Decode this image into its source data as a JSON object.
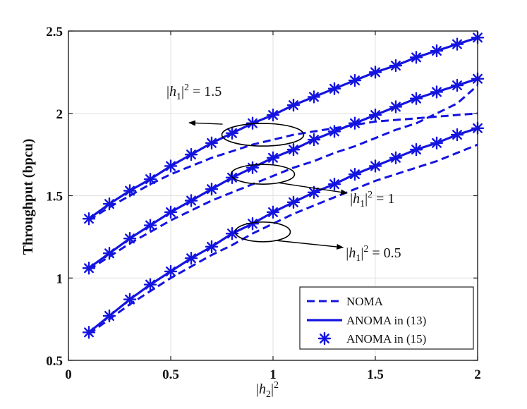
{
  "chart_data": {
    "type": "line",
    "title": "",
    "xlabel": "|h2|^2",
    "ylabel": "Throughput (bpcu)",
    "xlim": [
      0,
      2
    ],
    "ylim": [
      0.5,
      2.5
    ],
    "xticks": [
      "0",
      "0.5",
      "1",
      "1.5",
      "2"
    ],
    "yticks": [
      "0.5",
      "1",
      "1.5",
      "2",
      "2.5"
    ],
    "grid": true,
    "legend_position": "bottom-right",
    "legend": [
      "NOMA",
      "ANOMA in (13)",
      "ANOMA in (15)"
    ],
    "x": [
      0.1,
      0.2,
      0.3,
      0.4,
      0.5,
      0.6,
      0.7,
      0.8,
      0.9,
      1.0,
      1.1,
      1.2,
      1.3,
      1.4,
      1.5,
      1.6,
      1.7,
      1.8,
      1.9,
      2.0
    ],
    "series": [
      {
        "name": "NOMA, |h1|^2 = 1.5",
        "style": "dashed",
        "values": [
          1.35,
          1.43,
          1.5,
          1.57,
          1.63,
          1.68,
          1.73,
          1.77,
          1.81,
          1.84,
          1.87,
          1.89,
          1.91,
          1.93,
          1.95,
          1.96,
          1.97,
          1.98,
          1.99,
          2.0
        ]
      },
      {
        "name": "NOMA, |h1|^2 = 1",
        "style": "dashed",
        "values": [
          1.05,
          1.13,
          1.21,
          1.28,
          1.35,
          1.41,
          1.47,
          1.52,
          1.57,
          1.62,
          1.67,
          1.71,
          1.76,
          1.8,
          1.85,
          1.9,
          1.94,
          2.0,
          2.06,
          2.17
        ]
      },
      {
        "name": "NOMA, |h1|^2 = 0.5",
        "style": "dashed",
        "values": [
          0.66,
          0.75,
          0.84,
          0.92,
          1.0,
          1.07,
          1.14,
          1.2,
          1.27,
          1.33,
          1.39,
          1.44,
          1.49,
          1.54,
          1.59,
          1.63,
          1.67,
          1.71,
          1.76,
          1.81
        ]
      },
      {
        "name": "ANOMA (13), |h1|^2 = 1.5",
        "style": "solid",
        "values": [
          1.36,
          1.45,
          1.53,
          1.6,
          1.68,
          1.75,
          1.82,
          1.88,
          1.94,
          1.99,
          2.05,
          2.1,
          2.15,
          2.2,
          2.25,
          2.29,
          2.34,
          2.38,
          2.42,
          2.46
        ]
      },
      {
        "name": "ANOMA (13), |h1|^2 = 1",
        "style": "solid",
        "values": [
          1.06,
          1.15,
          1.24,
          1.32,
          1.4,
          1.47,
          1.54,
          1.61,
          1.67,
          1.73,
          1.78,
          1.84,
          1.89,
          1.94,
          1.99,
          2.04,
          2.09,
          2.13,
          2.17,
          2.21
        ]
      },
      {
        "name": "ANOMA (13), |h1|^2 = 0.5",
        "style": "solid",
        "values": [
          0.67,
          0.77,
          0.87,
          0.96,
          1.04,
          1.12,
          1.19,
          1.27,
          1.33,
          1.4,
          1.46,
          1.52,
          1.57,
          1.63,
          1.68,
          1.73,
          1.78,
          1.82,
          1.87,
          1.91
        ]
      },
      {
        "name": "ANOMA (15), |h1|^2 = 1.5",
        "style": "marker",
        "values": [
          1.36,
          1.45,
          1.53,
          1.6,
          1.68,
          1.75,
          1.82,
          1.88,
          1.94,
          1.99,
          2.05,
          2.1,
          2.15,
          2.2,
          2.25,
          2.29,
          2.34,
          2.38,
          2.42,
          2.46
        ]
      },
      {
        "name": "ANOMA (15), |h1|^2 = 1",
        "style": "marker",
        "values": [
          1.06,
          1.15,
          1.24,
          1.32,
          1.4,
          1.47,
          1.54,
          1.61,
          1.67,
          1.73,
          1.78,
          1.84,
          1.89,
          1.94,
          1.99,
          2.04,
          2.09,
          2.13,
          2.17,
          2.21
        ]
      },
      {
        "name": "ANOMA (15), |h1|^2 = 0.5",
        "style": "marker",
        "values": [
          0.67,
          0.77,
          0.87,
          0.96,
          1.04,
          1.12,
          1.19,
          1.27,
          1.33,
          1.4,
          1.46,
          1.52,
          1.57,
          1.63,
          1.68,
          1.73,
          1.78,
          1.82,
          1.87,
          1.91
        ]
      }
    ],
    "annotations": [
      {
        "label": "|h1|^2 = 1.5",
        "ellipse_center": [
          0.95,
          1.87
        ],
        "text_anchor": [
          0.6,
          2.05
        ]
      },
      {
        "label": "|h1|^2 = 1",
        "ellipse_center": [
          0.95,
          1.63
        ],
        "text_anchor": [
          1.39,
          1.49
        ]
      },
      {
        "label": "|h1|^2 = 0.5",
        "ellipse_center": [
          0.95,
          1.28
        ],
        "text_anchor": [
          1.37,
          1.16
        ]
      }
    ],
    "colors": {
      "line": "#1414e0",
      "axis": "#222222",
      "grid": "#e0e0e0"
    }
  }
}
